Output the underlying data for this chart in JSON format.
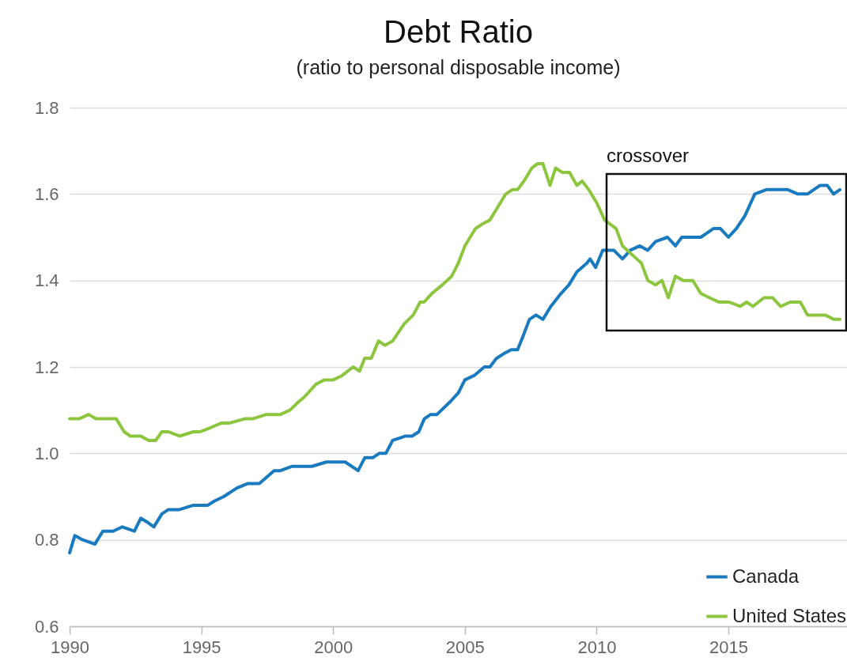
{
  "chart_data": {
    "type": "line",
    "title": "Debt Ratio",
    "subtitle": "(ratio to personal disposable income)",
    "xlim": [
      1990,
      2019.5
    ],
    "xticks": [
      1990,
      1995,
      2000,
      2005,
      2010,
      2015
    ],
    "ylim": [
      0.6,
      1.8
    ],
    "yticks": [
      0.6,
      0.8,
      {
        "value": 1,
        "label": "1.0"
      },
      1.2,
      1.4,
      1.6,
      1.8
    ],
    "grid": "y",
    "legend": "bottom right",
    "marker": "none",
    "line_style": "solid",
    "annotations": [
      "crossover"
    ],
    "series": [
      {
        "name": "Canada",
        "color": "#1a7abf",
        "x": [
          1990.0,
          1990.2,
          1990.5,
          1990.96,
          1991.26,
          1991.65,
          1992.0,
          1992.46,
          1992.7,
          1992.97,
          1993.2,
          1993.5,
          1993.75,
          1994.17,
          1994.7,
          1994.95,
          1995.25,
          1995.5,
          1995.85,
          1996.35,
          1996.75,
          1997.2,
          1997.76,
          1998.0,
          1998.45,
          1998.8,
          1999.2,
          1999.74,
          2000.46,
          2000.95,
          2001.2,
          2001.5,
          2001.75,
          2002.0,
          2002.26,
          2002.74,
          2003.0,
          2003.25,
          2003.46,
          2003.7,
          2003.94,
          2004.45,
          2004.75,
          2005.0,
          2005.35,
          2005.74,
          2005.95,
          2006.2,
          2006.46,
          2006.76,
          2007.0,
          2007.2,
          2007.45,
          2007.7,
          2007.96,
          2008.26,
          2008.65,
          2008.95,
          2009.25,
          2009.63,
          2009.75,
          2009.96,
          2010.23,
          2010.65,
          2010.98,
          2011.28,
          2011.64,
          2011.94,
          2012.24,
          2012.69,
          2012.99,
          2013.23,
          2013.53,
          2013.95,
          2014.19,
          2014.43,
          2014.7,
          2015.0,
          2015.3,
          2015.63,
          2016.0,
          2016.44,
          2016.95,
          2017.25,
          2017.64,
          2018.0,
          2018.48,
          2018.75,
          2018.99,
          2019.23
        ],
        "values": [
          0.77,
          0.81,
          0.8,
          0.79,
          0.82,
          0.82,
          0.83,
          0.82,
          0.85,
          0.84,
          0.83,
          0.86,
          0.87,
          0.87,
          0.88,
          0.88,
          0.88,
          0.89,
          0.9,
          0.92,
          0.93,
          0.93,
          0.96,
          0.96,
          0.97,
          0.97,
          0.97,
          0.98,
          0.98,
          0.96,
          0.99,
          0.99,
          1.0,
          1.0,
          1.03,
          1.04,
          1.04,
          1.05,
          1.08,
          1.09,
          1.09,
          1.12,
          1.14,
          1.17,
          1.18,
          1.2,
          1.2,
          1.22,
          1.23,
          1.24,
          1.24,
          1.27,
          1.31,
          1.32,
          1.31,
          1.34,
          1.37,
          1.39,
          1.42,
          1.44,
          1.45,
          1.43,
          1.47,
          1.47,
          1.45,
          1.47,
          1.48,
          1.47,
          1.49,
          1.5,
          1.48,
          1.5,
          1.5,
          1.5,
          1.51,
          1.52,
          1.52,
          1.5,
          1.52,
          1.55,
          1.6,
          1.61,
          1.61,
          1.61,
          1.6,
          1.6,
          1.62,
          1.62,
          1.6,
          1.61
        ]
      },
      {
        "name": "United States",
        "color": "#8cc63f",
        "x": [
          1990.0,
          1990.36,
          1990.72,
          1991.0,
          1991.26,
          1991.5,
          1991.77,
          1992.07,
          1992.3,
          1992.7,
          1993.0,
          1993.27,
          1993.5,
          1993.75,
          1994.17,
          1994.7,
          1994.95,
          1995.37,
          1995.75,
          1996.05,
          1996.65,
          1996.95,
          1997.46,
          1997.7,
          1998.0,
          1998.36,
          1998.7,
          1998.9,
          1999.35,
          1999.66,
          2000.0,
          2000.34,
          2000.76,
          2001.0,
          2001.2,
          2001.45,
          2001.72,
          2001.96,
          2002.26,
          2002.7,
          2003.04,
          2003.3,
          2003.45,
          2003.75,
          2004.15,
          2004.5,
          2004.75,
          2005.0,
          2005.4,
          2005.65,
          2005.95,
          2006.25,
          2006.55,
          2006.8,
          2007.0,
          2007.24,
          2007.54,
          2007.75,
          2007.96,
          2008.23,
          2008.44,
          2008.7,
          2008.97,
          2009.25,
          2009.45,
          2009.7,
          2010.0,
          2010.3,
          2010.74,
          2010.98,
          2011.34,
          2011.7,
          2011.94,
          2012.24,
          2012.48,
          2012.72,
          2012.99,
          2013.29,
          2013.65,
          2013.95,
          2014.28,
          2014.64,
          2015.03,
          2015.45,
          2015.69,
          2015.93,
          2016.35,
          2016.68,
          2016.98,
          2017.34,
          2017.73,
          2018.0,
          2018.39,
          2018.69,
          2018.99,
          2019.23
        ],
        "values": [
          1.08,
          1.08,
          1.09,
          1.08,
          1.08,
          1.08,
          1.08,
          1.05,
          1.04,
          1.04,
          1.03,
          1.03,
          1.05,
          1.05,
          1.04,
          1.05,
          1.05,
          1.06,
          1.07,
          1.07,
          1.08,
          1.08,
          1.09,
          1.09,
          1.09,
          1.1,
          1.12,
          1.13,
          1.16,
          1.17,
          1.17,
          1.18,
          1.2,
          1.19,
          1.22,
          1.22,
          1.26,
          1.25,
          1.26,
          1.3,
          1.32,
          1.35,
          1.35,
          1.37,
          1.39,
          1.41,
          1.44,
          1.48,
          1.52,
          1.53,
          1.54,
          1.57,
          1.6,
          1.61,
          1.61,
          1.63,
          1.66,
          1.67,
          1.67,
          1.62,
          1.66,
          1.65,
          1.65,
          1.62,
          1.63,
          1.61,
          1.58,
          1.54,
          1.52,
          1.48,
          1.46,
          1.44,
          1.4,
          1.39,
          1.4,
          1.36,
          1.41,
          1.4,
          1.4,
          1.37,
          1.36,
          1.35,
          1.35,
          1.34,
          1.35,
          1.34,
          1.36,
          1.36,
          1.34,
          1.35,
          1.35,
          1.32,
          1.32,
          1.32,
          1.31,
          1.31
        ]
      }
    ]
  }
}
